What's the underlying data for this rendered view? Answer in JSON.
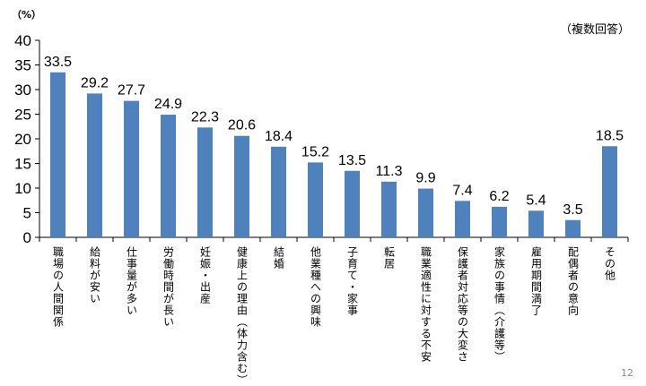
{
  "unit_label": "（%）",
  "note": "（複数回答）",
  "page_number": "12",
  "colors": {
    "bar": "#4F81BD",
    "axis": "#000000"
  },
  "chart_data": {
    "type": "bar",
    "title": "",
    "xlabel": "",
    "ylabel": "",
    "ylim": [
      0,
      40
    ],
    "yticks": [
      0,
      5,
      10,
      15,
      20,
      25,
      30,
      35,
      40
    ],
    "grid": false,
    "categories": [
      "職場の人間関係",
      "給料が安い",
      "仕事量が多い",
      "労働時間が長い",
      "妊娠・出産",
      "健康上の理由（体力含む）",
      "結婚",
      "他業種への興味",
      "子育て・家事",
      "転居",
      "職業適性に対する不安",
      "保護者対応等の大変さ",
      "家族の事情（介護等）",
      "雇用期間満了",
      "配偶者の意向",
      "その他"
    ],
    "values": [
      33.5,
      29.2,
      27.7,
      24.9,
      22.3,
      20.6,
      18.4,
      15.2,
      13.5,
      11.3,
      9.9,
      7.4,
      6.2,
      5.4,
      3.5,
      18.5
    ],
    "value_labels": [
      "33.5",
      "29.2",
      "27.7",
      "24.9",
      "22.3",
      "20.6",
      "18.4",
      "15.2",
      "13.5",
      "11.3",
      "9.9",
      "7.4",
      "6.2",
      "5.4",
      "3.5",
      "18.5"
    ]
  }
}
